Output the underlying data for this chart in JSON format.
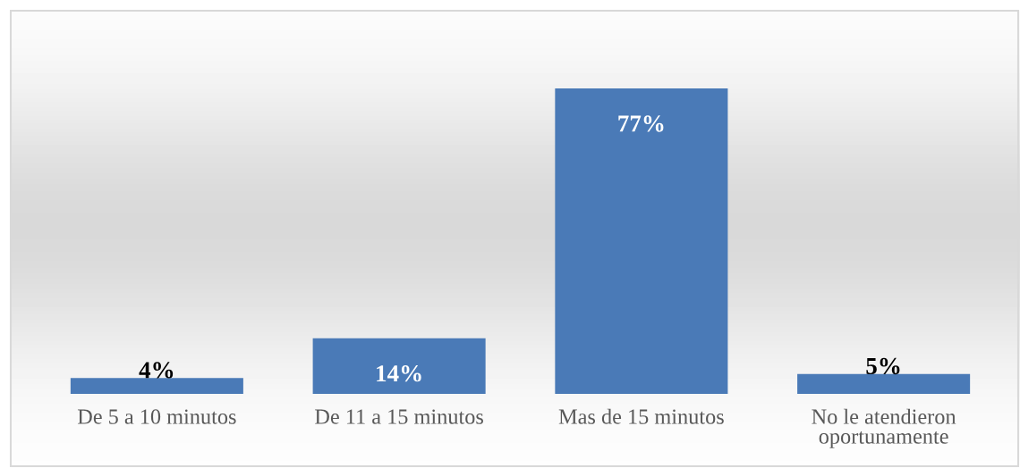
{
  "chart_data": {
    "type": "bar",
    "categories": [
      "De 5 a 10 minutos",
      "De 11 a 15 minutos",
      "Mas de 15 minutos",
      "No le atendieron\noportunamente"
    ],
    "values": [
      4,
      14,
      77,
      5
    ],
    "value_labels": [
      "4%",
      "14%",
      "77%",
      "5%"
    ],
    "color": "#4a7ab7",
    "grid": false,
    "legend": false
  }
}
